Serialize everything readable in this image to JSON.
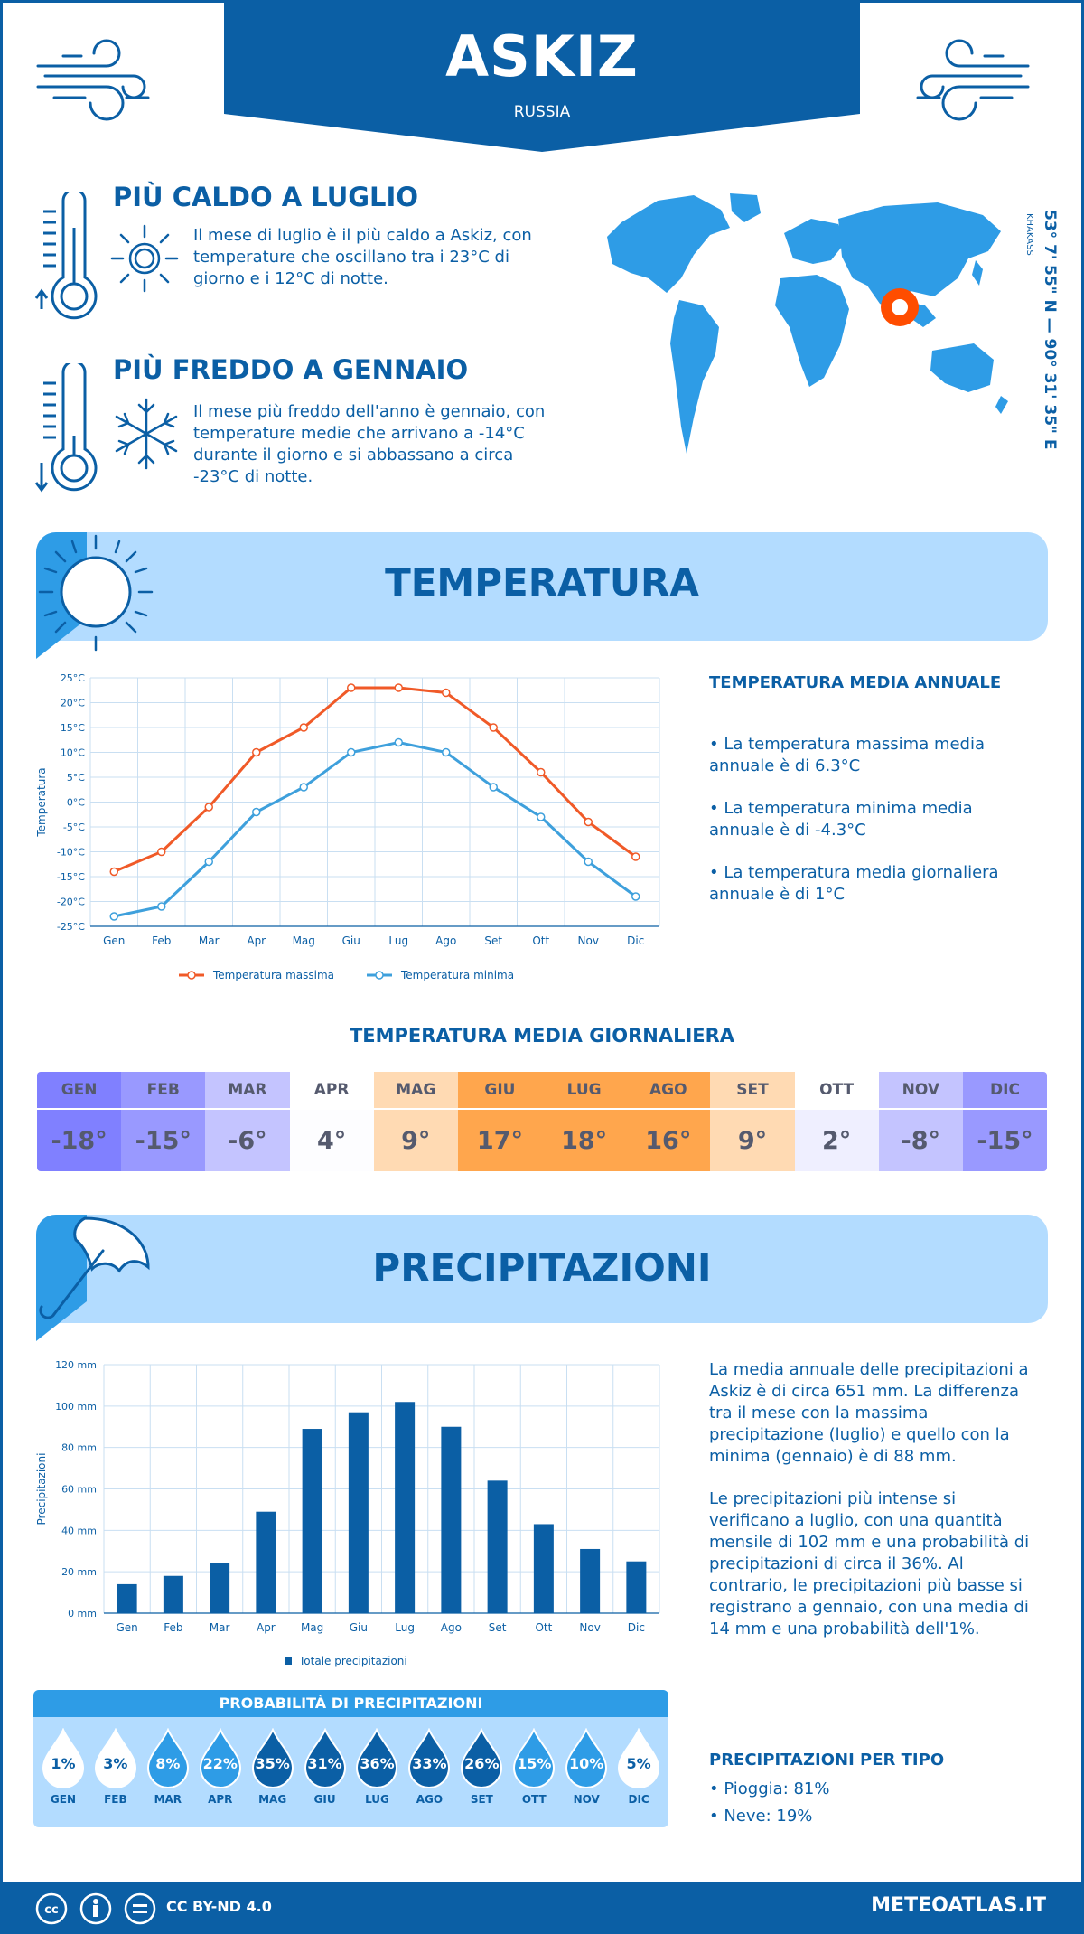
{
  "header": {
    "city": "ASKIZ",
    "country": "RUSSIA"
  },
  "facts": {
    "hottest": {
      "title": "PIÙ CALDO A LUGLIO",
      "text": "Il mese di luglio è il più caldo a Askiz, con temperature che oscillano tra i 23°C di giorno e i 12°C di notte."
    },
    "coldest": {
      "title": "PIÙ FREDDO A GENNAIO",
      "text": "Il mese più freddo dell'anno è gennaio, con temperature medie che arrivano a -14°C durante il giorno e si abbassano a circa -23°C di notte."
    }
  },
  "location": {
    "coordinates": "53° 7' 55\" N — 90° 31' 35\" E",
    "region": "KHAKASS"
  },
  "temperature_section": {
    "title": "TEMPERATURA",
    "annual_title": "TEMPERATURA MEDIA ANNUALE",
    "annual_items": [
      "• La temperatura massima media annuale è di 6.3°C",
      "• La temperatura minima media annuale è di -4.3°C",
      "• La temperatura media giornaliera annuale è di 1°C"
    ]
  },
  "daily_table": {
    "title": "TEMPERATURA MEDIA GIORNALIERA",
    "months": [
      "GEN",
      "FEB",
      "MAR",
      "APR",
      "MAG",
      "GIU",
      "LUG",
      "AGO",
      "SET",
      "OTT",
      "NOV",
      "DIC"
    ],
    "values": [
      "-18°",
      "-15°",
      "-6°",
      "4°",
      "9°",
      "17°",
      "18°",
      "16°",
      "9°",
      "2°",
      "-8°",
      "-15°"
    ],
    "head_colors": [
      "#8080ff",
      "#9999ff",
      "#c4c4ff",
      "#ffffff",
      "#ffdab3",
      "#ffa64d",
      "#ffa64d",
      "#ffa64d",
      "#ffdab3",
      "#ffffff",
      "#c4c4ff",
      "#9999ff"
    ],
    "value_colors": [
      "#8080ff",
      "#9999ff",
      "#c4c4ff",
      "#fdfdff",
      "#ffdab3",
      "#ffa64d",
      "#ffa64d",
      "#ffa64d",
      "#ffdab3",
      "#efefff",
      "#c4c4ff",
      "#9999ff"
    ]
  },
  "precip_section": {
    "title": "PRECIPITAZIONI",
    "paragraph1": "La media annuale delle precipitazioni a Askiz è di circa 651 mm. La differenza tra il mese con la massima precipitazione (luglio) e quello con la minima (gennaio) è di 88 mm.",
    "paragraph2": "Le precipitazioni più intense si verificano a luglio, con una quantità mensile di 102 mm e una probabilità di precipitazioni di circa il 36%. Al contrario, le precipitazioni più basse si registrano a gennaio, con una media di 14 mm e una probabilità dell'1%.",
    "type_title": "PRECIPITAZIONI PER TIPO",
    "types": [
      "• Pioggia: 81%",
      "• Neve: 19%"
    ]
  },
  "probability": {
    "title": "PROBABILITÀ DI PRECIPITAZIONI",
    "months": [
      "GEN",
      "FEB",
      "MAR",
      "APR",
      "MAG",
      "GIU",
      "LUG",
      "AGO",
      "SET",
      "OTT",
      "NOV",
      "DIC"
    ],
    "values": [
      "1%",
      "3%",
      "8%",
      "22%",
      "35%",
      "31%",
      "36%",
      "33%",
      "26%",
      "15%",
      "10%",
      "5%"
    ],
    "fill_colors": [
      "#ffffff",
      "#ffffff",
      "#2e9ce6",
      "#2e9ce6",
      "#0b5fa5",
      "#0b5fa5",
      "#0b5fa5",
      "#0b5fa5",
      "#0b5fa5",
      "#2e9ce6",
      "#2e9ce6",
      "#ffffff"
    ]
  },
  "footer": {
    "license": "CC BY-ND 4.0",
    "site": "METEOATLAS.IT"
  },
  "colors": {
    "primary": "#0b5fa5",
    "light": "#b3dcff",
    "accent": "#2e9ce6",
    "max_line": "#f05a28",
    "min_line": "#3ea0dc",
    "marker": "#f05a28"
  },
  "chart_data": [
    {
      "type": "line",
      "categories": [
        "Gen",
        "Feb",
        "Mar",
        "Apr",
        "Mag",
        "Giu",
        "Lug",
        "Ago",
        "Set",
        "Ott",
        "Nov",
        "Dic"
      ],
      "series": [
        {
          "name": "Temperatura massima",
          "values": [
            -14,
            -10,
            -1,
            10,
            15,
            23,
            23,
            22,
            15,
            6,
            -4,
            -11
          ]
        },
        {
          "name": "Temperatura minima",
          "values": [
            -23,
            -21,
            -12,
            -2,
            3,
            10,
            12,
            10,
            3,
            -3,
            -12,
            -19
          ]
        }
      ],
      "ylabel": "Temperatura",
      "yticks": [
        "25°C",
        "20°C",
        "15°C",
        "10°C",
        "5°C",
        "0°C",
        "-5°C",
        "-10°C",
        "-15°C",
        "-20°C",
        "-25°C"
      ],
      "ylim": [
        -25,
        25
      ],
      "grid": true,
      "legend": "bottom"
    },
    {
      "type": "bar",
      "categories": [
        "Gen",
        "Feb",
        "Mar",
        "Apr",
        "Mag",
        "Giu",
        "Lug",
        "Ago",
        "Set",
        "Ott",
        "Nov",
        "Dic"
      ],
      "series": [
        {
          "name": "Totale precipitazioni",
          "values": [
            14,
            18,
            24,
            49,
            89,
            97,
            102,
            90,
            64,
            43,
            31,
            25
          ]
        }
      ],
      "ylabel": "Precipitazioni",
      "yticks": [
        "120 mm",
        "100 mm",
        "80 mm",
        "60 mm",
        "40 mm",
        "20 mm",
        "0 mm"
      ],
      "ylim": [
        0,
        120
      ],
      "grid": true,
      "legend": "bottom"
    }
  ]
}
